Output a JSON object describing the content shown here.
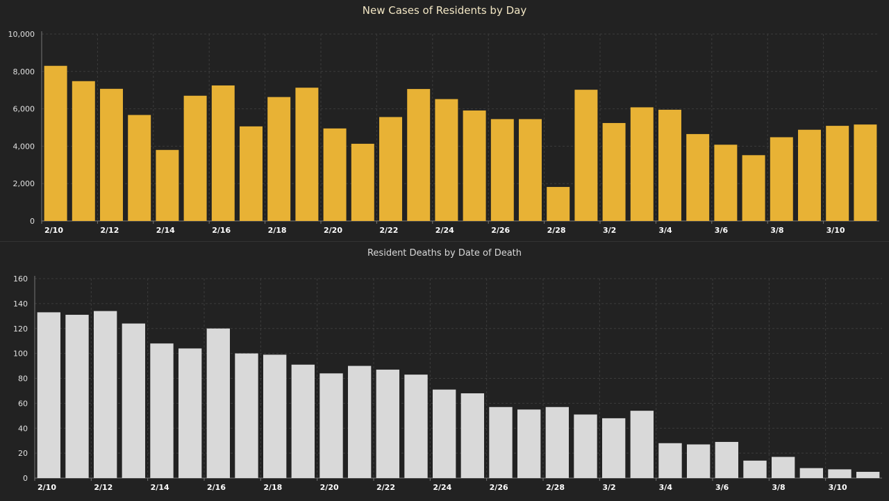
{
  "chart_data": [
    {
      "type": "bar",
      "title": "New Cases of Residents by Day",
      "xlabel": "",
      "ylabel": "",
      "ylim": [
        0,
        10000
      ],
      "yticks": [
        "0",
        "2,000",
        "4,000",
        "6,000",
        "8,000",
        "10,000"
      ],
      "ytick_values": [
        0,
        2000,
        4000,
        6000,
        8000,
        10000
      ],
      "categories": [
        "2/10",
        "2/11",
        "2/12",
        "2/13",
        "2/14",
        "2/15",
        "2/16",
        "2/17",
        "2/18",
        "2/19",
        "2/20",
        "2/21",
        "2/22",
        "2/23",
        "2/24",
        "2/25",
        "2/26",
        "2/27",
        "2/28",
        "3/1",
        "3/2",
        "3/3",
        "3/4",
        "3/5",
        "3/6",
        "3/7",
        "3/8",
        "3/9",
        "3/10",
        "3/11"
      ],
      "xtick_labels": [
        "2/10",
        "",
        "2/12",
        "",
        "2/14",
        "",
        "2/16",
        "",
        "2/18",
        "",
        "2/20",
        "",
        "2/22",
        "",
        "2/24",
        "",
        "2/26",
        "",
        "2/28",
        "",
        "3/2",
        "",
        "3/4",
        "",
        "3/6",
        "",
        "3/8",
        "",
        "3/10",
        ""
      ],
      "values": [
        8300,
        7480,
        7070,
        5670,
        3800,
        6700,
        7250,
        5060,
        6630,
        7130,
        4950,
        4130,
        5560,
        7060,
        6520,
        5910,
        5450,
        5450,
        1820,
        7020,
        5240,
        6080,
        5950,
        4650,
        4080,
        3520,
        4480,
        4880,
        5090,
        5160
      ],
      "color": "#e8b235",
      "grid": true,
      "legend": "none"
    },
    {
      "type": "bar",
      "title": "Resident Deaths by Date of Death",
      "xlabel": "",
      "ylabel": "",
      "ylim": [
        0,
        160
      ],
      "yticks": [
        "0",
        "20",
        "40",
        "60",
        "80",
        "100",
        "120",
        "140",
        "160"
      ],
      "ytick_values": [
        0,
        20,
        40,
        60,
        80,
        100,
        120,
        140,
        160
      ],
      "categories": [
        "2/10",
        "2/11",
        "2/12",
        "2/13",
        "2/14",
        "2/15",
        "2/16",
        "2/17",
        "2/18",
        "2/19",
        "2/20",
        "2/21",
        "2/22",
        "2/23",
        "2/24",
        "2/25",
        "2/26",
        "2/27",
        "2/28",
        "3/1",
        "3/2",
        "3/3",
        "3/4",
        "3/5",
        "3/6",
        "3/7",
        "3/8",
        "3/9",
        "3/10",
        "3/11"
      ],
      "xtick_labels": [
        "2/10",
        "",
        "2/12",
        "",
        "2/14",
        "",
        "2/16",
        "",
        "2/18",
        "",
        "2/20",
        "",
        "2/22",
        "",
        "2/24",
        "",
        "2/26",
        "",
        "2/28",
        "",
        "3/2",
        "",
        "3/4",
        "",
        "3/6",
        "",
        "3/8",
        "",
        "3/10",
        ""
      ],
      "values": [
        133,
        131,
        134,
        124,
        108,
        104,
        120,
        100,
        99,
        91,
        84,
        90,
        87,
        83,
        71,
        68,
        57,
        55,
        57,
        51,
        48,
        54,
        28,
        27,
        29,
        14,
        17,
        8,
        7,
        5
      ],
      "color": "#d9d9d9",
      "grid": true,
      "legend": "none"
    }
  ]
}
